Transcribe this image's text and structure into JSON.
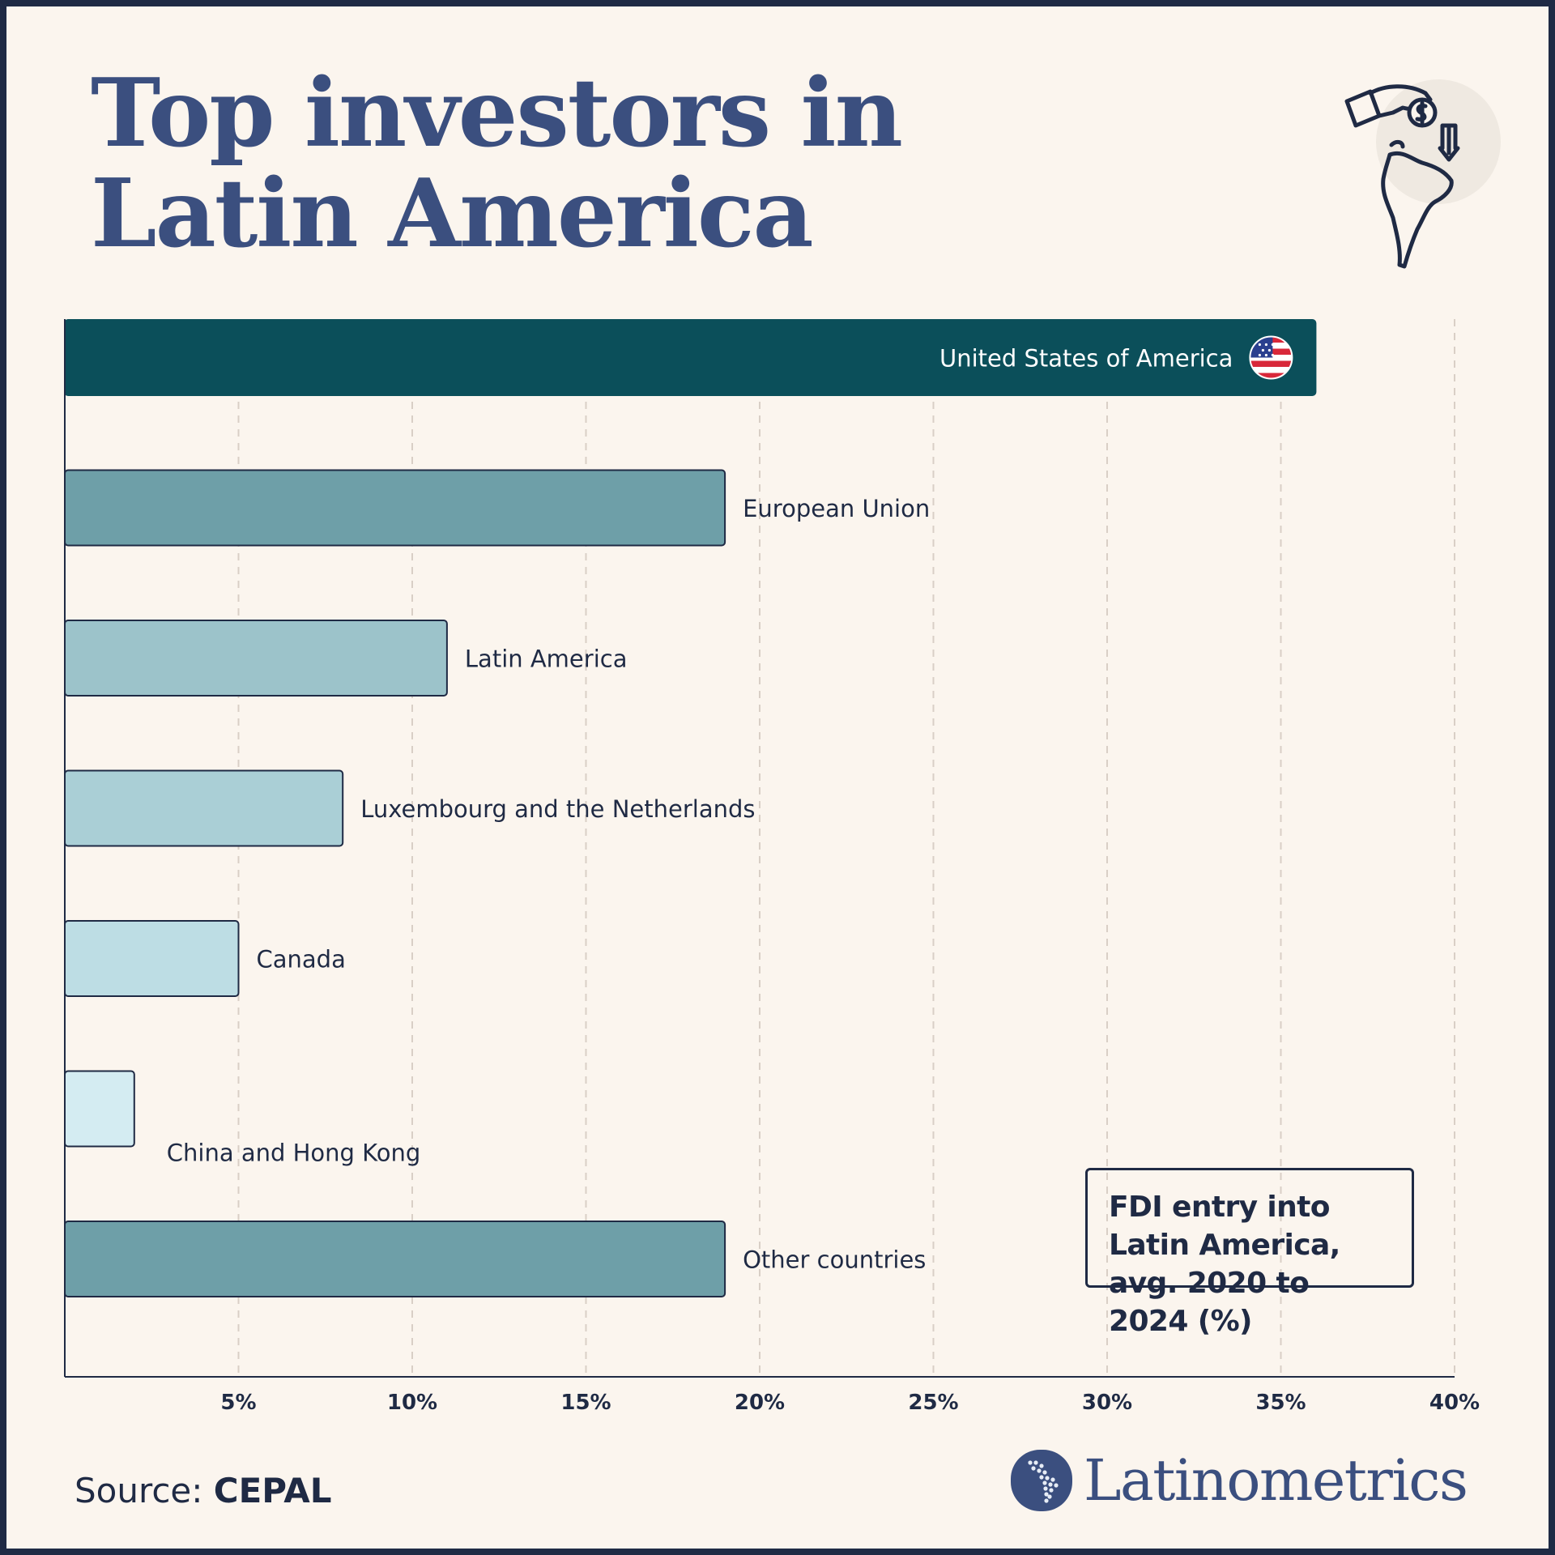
{
  "title": {
    "line1": "Top investors in",
    "line2": "Latin America"
  },
  "legend": {
    "text": "FDI entry into Latin America, avg. 2020 to 2024 (%)"
  },
  "source": {
    "label": "Source:",
    "value": "CEPAL"
  },
  "brand": {
    "name": "Latinometrics"
  },
  "icons": {
    "hero": "hand-money-map-icon",
    "flag": "us-flag-icon",
    "brand_logo": "latin-america-dots-logo"
  },
  "colors": {
    "background": "#fbf5ee",
    "frame": "#1f2a44",
    "title": "#3b4f7f",
    "bar_top": "#0b4f5a",
    "bar_mid": "#6e9fa8",
    "bar_latam": "#9cc3ca",
    "bar_lux": "#aacfd6",
    "bar_canada": "#bddde4",
    "bar_china": "#d4ecf2"
  },
  "chart_data": {
    "type": "bar",
    "orientation": "horizontal",
    "title": "FDI entry into Latin America, avg. 2020 to 2024 (%)",
    "xlabel": "",
    "ylabel": "",
    "xlim": [
      0,
      40
    ],
    "ticks": [
      5,
      10,
      15,
      20,
      25,
      30,
      35,
      40
    ],
    "tick_labels": [
      "5%",
      "10%",
      "15%",
      "20%",
      "25%",
      "30%",
      "35%",
      "40%"
    ],
    "grid": "vertical dashed",
    "categories": [
      "United States of America",
      "European Union",
      "Latin America",
      "Luxembourg and the Netherlands",
      "Canada",
      "China and Hong Kong",
      "Other countries"
    ],
    "values": [
      36,
      19,
      11,
      8,
      5,
      2,
      19
    ],
    "bar_colors": [
      "#0b4f5a",
      "#6e9fa8",
      "#9cc3ca",
      "#aacfd6",
      "#bddde4",
      "#d4ecf2",
      "#6e9fa8"
    ],
    "label_inside": [
      true,
      false,
      false,
      false,
      false,
      false,
      false
    ]
  }
}
